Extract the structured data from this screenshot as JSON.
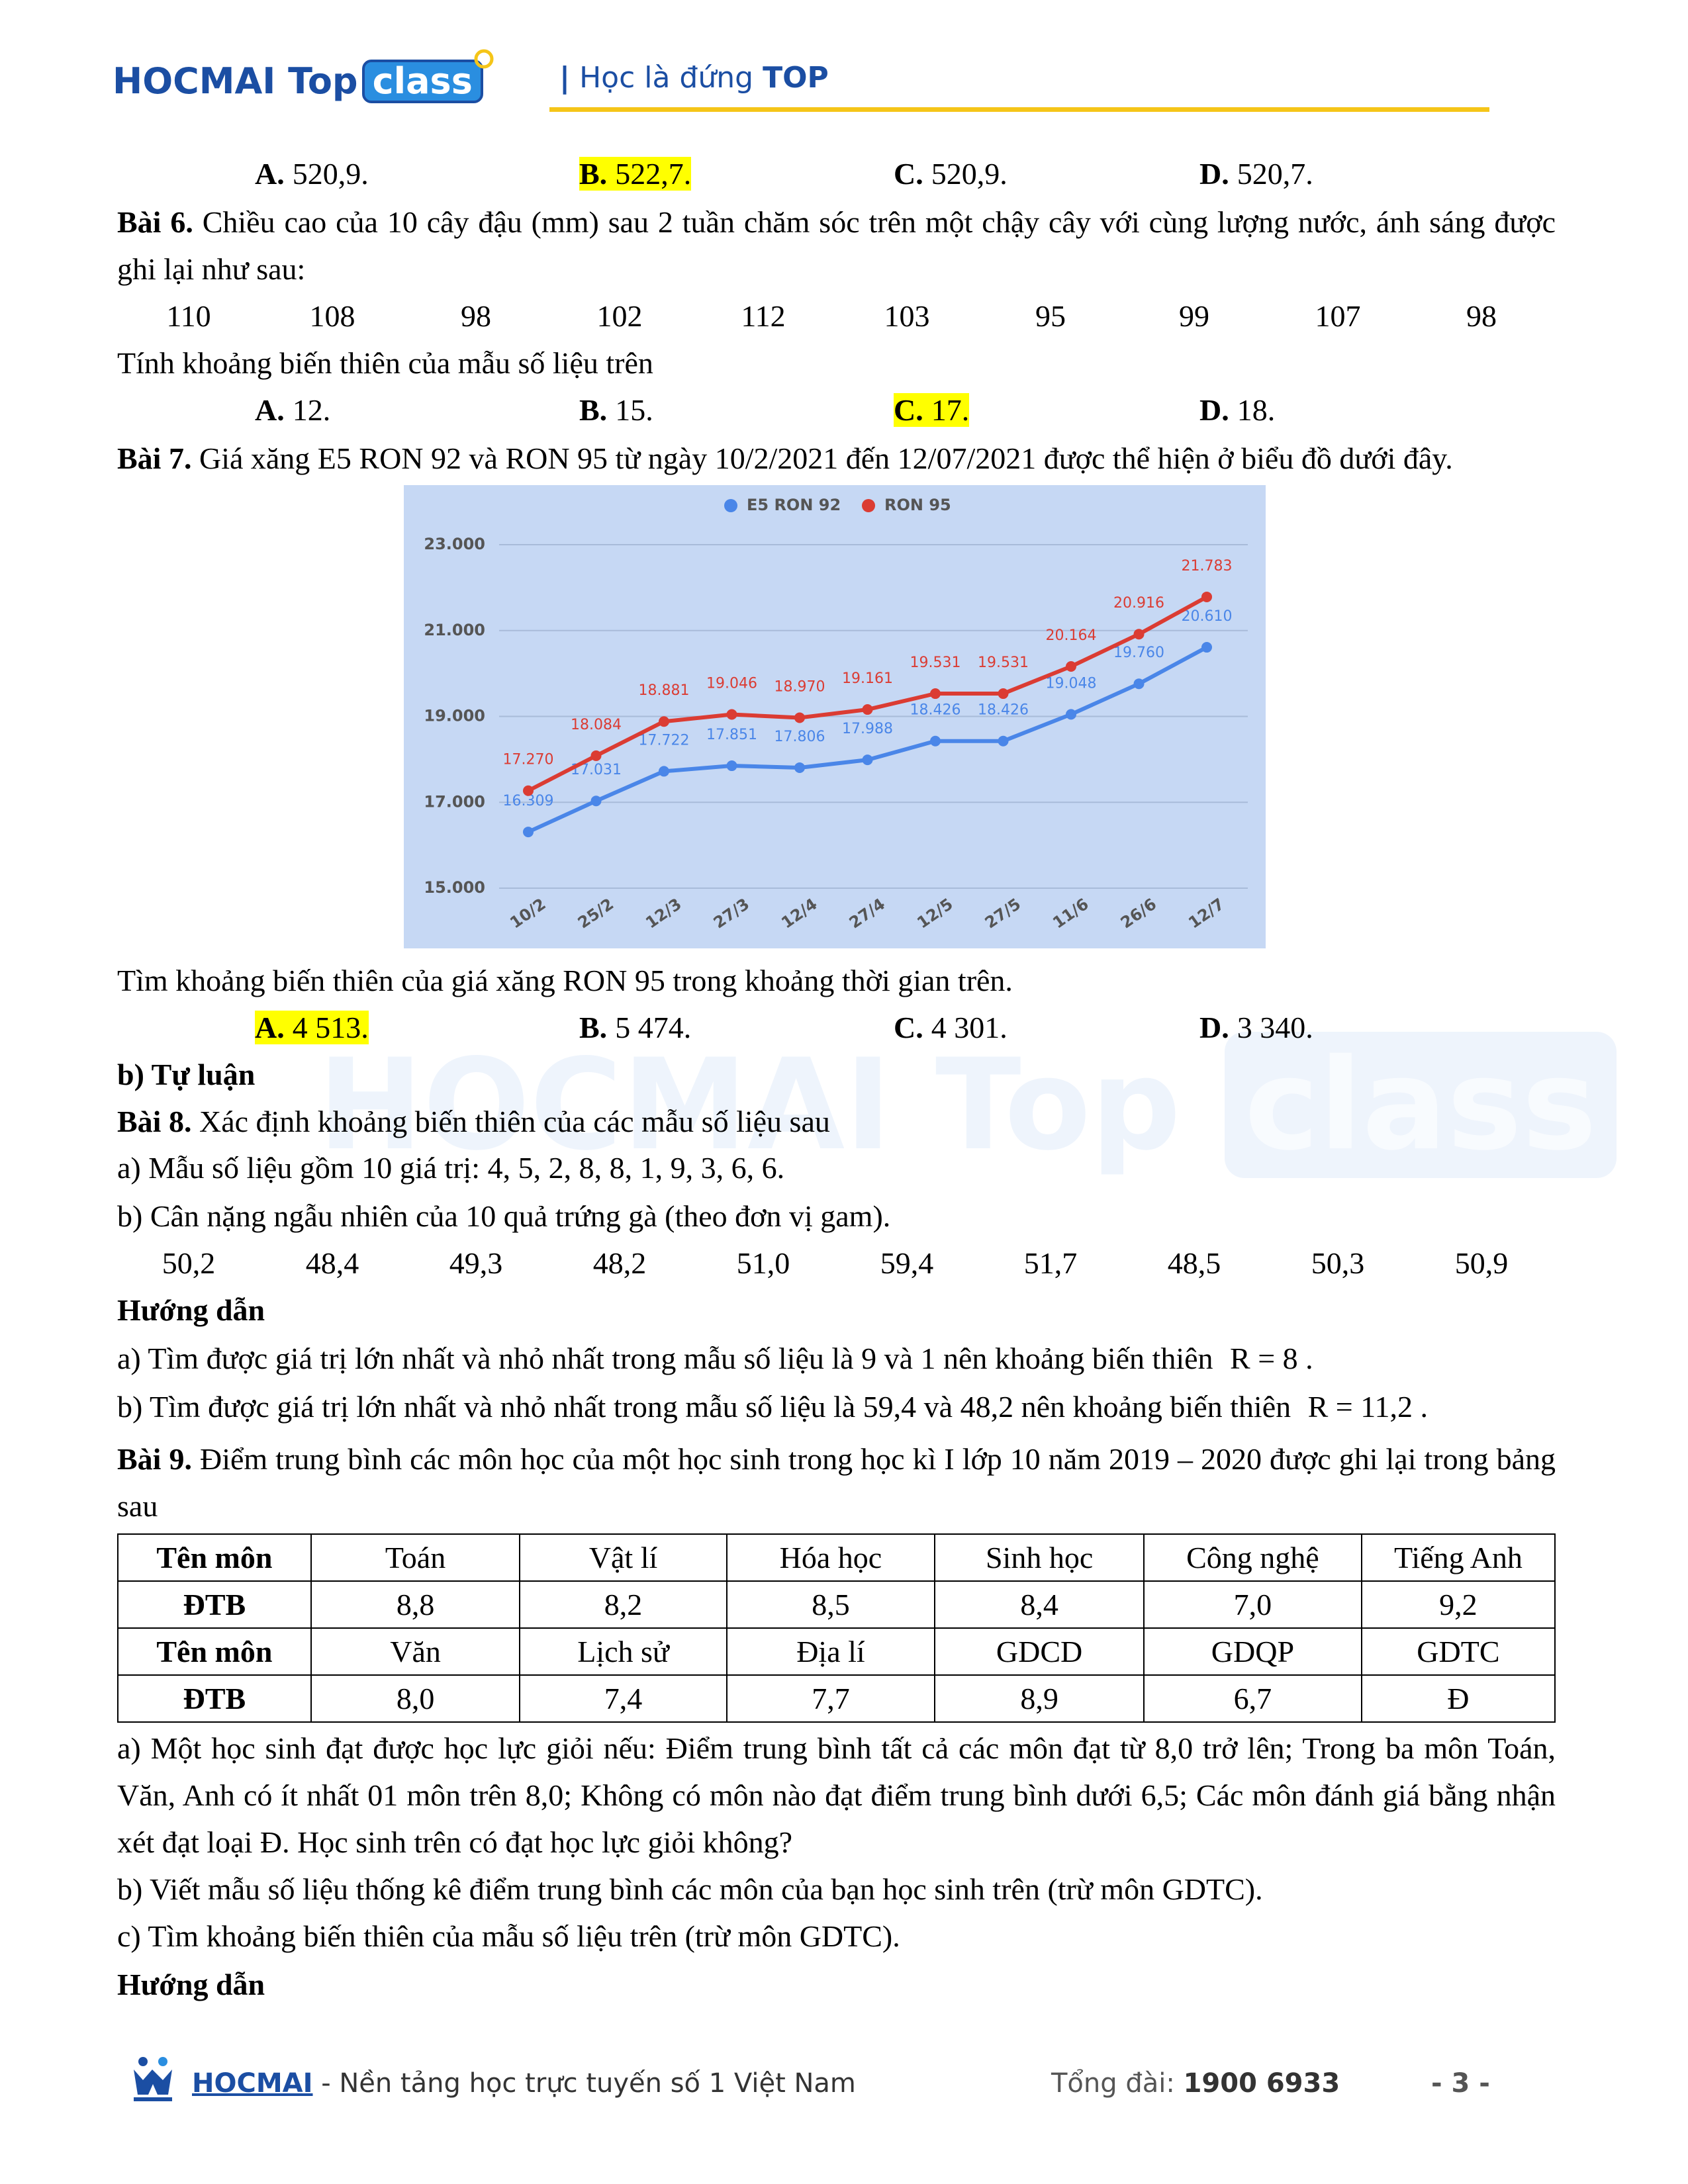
{
  "header": {
    "logo_hocmai": "HOCMAI",
    "logo_top": "Top",
    "logo_class": "class",
    "slogan_prefix": "Học là đứng",
    "slogan_highlight": "TOP"
  },
  "bai5": {
    "options": [
      {
        "label": "A.",
        "text": "520,9."
      },
      {
        "label": "B.",
        "text": "522,7.",
        "highlight": true
      },
      {
        "label": "C.",
        "text": "520,9."
      },
      {
        "label": "D.",
        "text": "520,7."
      }
    ]
  },
  "bai6": {
    "label": "Bài 6.",
    "text": "Chiều cao của 10 cây đậu (mm) sau 2 tuần chăm sóc trên một chậy cây với cùng lượng nước, ánh sáng được ghi lại như sau:",
    "data": [
      "110",
      "108",
      "98",
      "102",
      "112",
      "103",
      "95",
      "99",
      "107",
      "98"
    ],
    "question": "Tính khoảng biến thiên của mẫu số liệu trên",
    "options": [
      {
        "label": "A.",
        "text": "12."
      },
      {
        "label": "B.",
        "text": "15."
      },
      {
        "label": "C.",
        "text": "17.",
        "highlight": true
      },
      {
        "label": "D.",
        "text": "18."
      }
    ]
  },
  "bai7": {
    "label": "Bài 7.",
    "text": "Giá xăng E5 RON 92 và RON 95 từ ngày 10/2/2021 đến 12/07/2021 được thể hiện ở biểu đồ dưới đây.",
    "question": "Tìm khoảng biến thiên của giá xăng RON 95 trong khoảng thời gian trên.",
    "options": [
      {
        "label": "A.",
        "text": "4 513.",
        "highlight": true
      },
      {
        "label": "B.",
        "text": "5 474."
      },
      {
        "label": "C.",
        "text": "4 301."
      },
      {
        "label": "D.",
        "text": "3 340."
      }
    ]
  },
  "section_b": "b) Tự luận",
  "bai8": {
    "label": "Bài 8.",
    "text": "Xác định khoảng biến thiên của các mẫu số liệu sau",
    "a": "a) Mẫu số liệu gồm 10 giá trị: 4, 5, 2, 8, 8, 1, 9, 3, 6, 6.",
    "b": "b) Cân nặng ngẫu nhiên của 10 quả trứng gà (theo đơn vị gam).",
    "data": [
      "50,2",
      "48,4",
      "49,3",
      "48,2",
      "51,0",
      "59,4",
      "51,7",
      "48,5",
      "50,3",
      "50,9"
    ],
    "guide_title": "Hướng dẫn",
    "guide_a": "a) Tìm được giá trị lớn nhất và nhỏ nhất trong mẫu số liệu là 9 và 1 nên khoảng biến thiên",
    "guide_a_formula": "R = 8 .",
    "guide_b": "b) Tìm được giá trị lớn nhất và nhỏ nhất trong mẫu số liệu là 59,4 và 48,2 nên khoảng biến thiên",
    "guide_b_formula": "R = 11,2 ."
  },
  "bai9": {
    "label": "Bài 9.",
    "text": "Điểm trung bình các môn học của một học sinh trong học kì I lớp 10 năm 2019 – 2020 được ghi lại trong bảng sau",
    "table": {
      "rows": [
        [
          "Tên môn",
          "Toán",
          "Vật lí",
          "Hóa học",
          "Sinh học",
          "Công nghệ",
          "Tiếng Anh"
        ],
        [
          "ĐTB",
          "8,8",
          "8,2",
          "8,5",
          "8,4",
          "7,0",
          "9,2"
        ],
        [
          "Tên môn",
          "Văn",
          "Lịch sử",
          "Địa lí",
          "GDCD",
          "GDQP",
          "GDTC"
        ],
        [
          "ĐTB",
          "8,0",
          "7,4",
          "7,7",
          "8,9",
          "6,7",
          "Đ"
        ]
      ]
    },
    "a": "a) Một học sinh đạt được học lực giỏi nếu: Điểm trung bình tất cả các môn đạt từ 8,0 trở lên; Trong ba môn Toán, Văn, Anh có ít nhất 01 môn trên 8,0; Không có môn nào đạt điểm trung bình dưới 6,5; Các môn đánh giá bằng nhận xét đạt loại Đ. Học sinh trên có đạt học lực giỏi không?",
    "b": "b) Viết mẫu số liệu thống kê điểm trung bình các môn của bạn học sinh trên (trừ môn GDTC).",
    "c": "c) Tìm khoảng biến thiên của mẫu số liệu trên (trừ môn GDTC).",
    "guide_title": "Hướng dẫn"
  },
  "watermark": {
    "hocmai": "HOCMAI",
    "top": "Top",
    "class": "class"
  },
  "footer": {
    "brand": "HOCMAI",
    "tagline": "- Nền tảng học trực tuyến số 1 Việt Nam",
    "hotline_label": "Tổng đài:",
    "hotline": "1900 6933",
    "page": "- 3 -"
  },
  "chart_data": {
    "type": "line",
    "categories": [
      "10/2",
      "25/2",
      "12/3",
      "27/3",
      "12/4",
      "27/4",
      "12/5",
      "27/5",
      "11/6",
      "26/6",
      "12/7"
    ],
    "series": [
      {
        "name": "E5 RON 92",
        "color": "#4a86e8",
        "values": [
          16309,
          17031,
          17722,
          17851,
          17806,
          17988,
          18426,
          18426,
          19048,
          19760,
          20610
        ],
        "value_labels": [
          "16.309",
          "17.031",
          "17.722",
          "17.851",
          "17.806",
          "17.988",
          "18.426",
          "18.426",
          "19.048",
          "19.760",
          "20.610"
        ]
      },
      {
        "name": "RON 95",
        "color": "#db3c33",
        "values": [
          17270,
          18084,
          18881,
          19046,
          18970,
          19161,
          19531,
          19531,
          20164,
          20916,
          21783
        ],
        "value_labels": [
          "17.270",
          "18.084",
          "18.881",
          "19.046",
          "18.970",
          "19.161",
          "19.531",
          "19.531",
          "20.164",
          "20.916",
          "21.783"
        ]
      }
    ],
    "ylim": [
      15000,
      23000
    ],
    "yticks": [
      {
        "value": 15000,
        "label": "15.000"
      },
      {
        "value": 17000,
        "label": "17.000"
      },
      {
        "value": 19000,
        "label": "19.000"
      },
      {
        "value": 21000,
        "label": "21.000"
      },
      {
        "value": 23000,
        "label": "23.000"
      }
    ],
    "grid": true,
    "legend": "top"
  }
}
